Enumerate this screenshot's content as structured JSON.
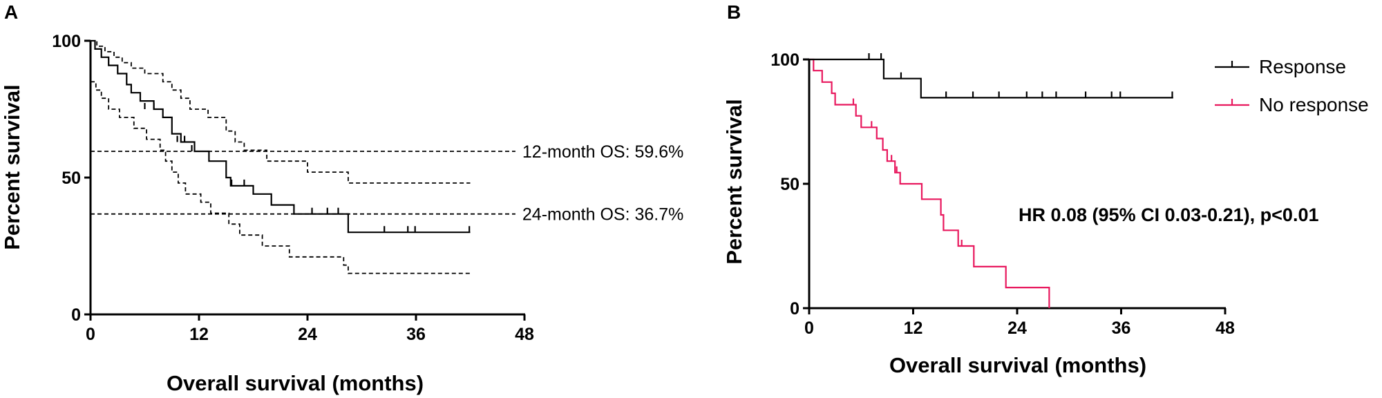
{
  "chart_data": [
    {
      "panel": "A",
      "type": "line",
      "xlabel": "Overall survival (months)",
      "ylabel": "Percent survival",
      "xlim": [
        0,
        48
      ],
      "ylim": [
        0,
        100
      ],
      "xticks": [
        "0",
        "12",
        "24",
        "36",
        "48"
      ],
      "yticks": [
        "0",
        "50",
        "100"
      ],
      "series": [
        {
          "color": "#000000",
          "style": "solid",
          "steps": [
            [
              0,
              100
            ],
            [
              0.5,
              97
            ],
            [
              1.2,
              94
            ],
            [
              2,
              91
            ],
            [
              3,
              88
            ],
            [
              4,
              84
            ],
            [
              4.5,
              81
            ],
            [
              5.5,
              78
            ],
            [
              7,
              75
            ],
            [
              8,
              72
            ],
            [
              9,
              66
            ],
            [
              10,
              63
            ],
            [
              11.5,
              59.6
            ],
            [
              13.1,
              56
            ],
            [
              15,
              50
            ],
            [
              15.5,
              47
            ],
            [
              18,
              44
            ],
            [
              20,
              40
            ],
            [
              22.5,
              36.7
            ],
            [
              28.5,
              30
            ],
            [
              42,
              30
            ]
          ],
          "censors": [
            [
              6,
              75
            ],
            [
              7,
              75
            ],
            [
              9.6,
              63
            ],
            [
              10.4,
              63
            ],
            [
              11.2,
              59.6
            ],
            [
              15.6,
              47
            ],
            [
              17,
              47
            ],
            [
              24.5,
              36.7
            ],
            [
              26.2,
              36.7
            ],
            [
              27.4,
              36.7
            ],
            [
              32.5,
              30
            ],
            [
              35.1,
              30
            ],
            [
              35.9,
              30
            ],
            [
              41.9,
              30
            ]
          ]
        },
        {
          "color": "#000000",
          "style": "dashed",
          "steps": [
            [
              0,
              100
            ],
            [
              0.7,
              98
            ],
            [
              1.6,
              96
            ],
            [
              2.6,
              94
            ],
            [
              3.5,
              92
            ],
            [
              4.5,
              90
            ],
            [
              6,
              88
            ],
            [
              8,
              85
            ],
            [
              9,
              82
            ],
            [
              10,
              79
            ],
            [
              11,
              75
            ],
            [
              13,
              72
            ],
            [
              15,
              67
            ],
            [
              16,
              63
            ],
            [
              17,
              60
            ],
            [
              19.5,
              56
            ],
            [
              24,
              52
            ],
            [
              28.5,
              48
            ],
            [
              42,
              48
            ]
          ]
        },
        {
          "color": "#000000",
          "style": "dashed",
          "steps": [
            [
              0,
              85
            ],
            [
              0.6,
              82
            ],
            [
              1.2,
              79
            ],
            [
              2,
              75
            ],
            [
              3.2,
              72
            ],
            [
              4.8,
              68
            ],
            [
              6.2,
              64
            ],
            [
              7.7,
              60
            ],
            [
              8.3,
              56
            ],
            [
              9,
              52
            ],
            [
              9.7,
              48
            ],
            [
              10.5,
              44
            ],
            [
              12.2,
              41
            ],
            [
              13.3,
              37
            ],
            [
              15.3,
              33
            ],
            [
              16.5,
              29
            ],
            [
              19,
              25
            ],
            [
              22,
              21
            ],
            [
              28,
              18
            ],
            [
              28.5,
              15
            ],
            [
              42,
              15
            ]
          ]
        }
      ],
      "reference_lines": [
        {
          "y": 59.6,
          "x_end": 47,
          "label": "12-month OS: 59.6%"
        },
        {
          "y": 36.7,
          "x_end": 47,
          "label": "24-month OS: 36.7%"
        }
      ]
    },
    {
      "panel": "B",
      "type": "line",
      "xlabel": "Overall survival (months)",
      "ylabel": "Percent survival",
      "xlim": [
        0,
        48
      ],
      "ylim": [
        0,
        100
      ],
      "xticks": [
        "0",
        "12",
        "24",
        "36",
        "48"
      ],
      "yticks": [
        "0",
        "50",
        "100"
      ],
      "legend": "top-right",
      "annotation": "HR 0.08 (95% CI 0.03-0.21), p<0.01",
      "series": [
        {
          "name": "Response",
          "color": "#000000",
          "steps": [
            [
              0,
              100
            ],
            [
              8.6,
              92.3
            ],
            [
              12.9,
              84.6
            ],
            [
              42,
              84.6
            ]
          ],
          "censors": [
            [
              6.9,
              100
            ],
            [
              8.3,
              100
            ],
            [
              10.6,
              92.3
            ],
            [
              15.8,
              84.6
            ],
            [
              18.9,
              84.6
            ],
            [
              21.9,
              84.6
            ],
            [
              25.1,
              84.6
            ],
            [
              26.9,
              84.6
            ],
            [
              28.5,
              84.6
            ],
            [
              31.9,
              84.6
            ],
            [
              34.9,
              84.6
            ],
            [
              35.9,
              84.6
            ],
            [
              41.9,
              84.6
            ]
          ]
        },
        {
          "name": "No response",
          "color": "#e8175d",
          "steps": [
            [
              0,
              100
            ],
            [
              0.5,
              95.5
            ],
            [
              1.5,
              90.9
            ],
            [
              2.6,
              86.4
            ],
            [
              3,
              81.8
            ],
            [
              5.4,
              77.3
            ],
            [
              6,
              72.7
            ],
            [
              7.8,
              68.2
            ],
            [
              8.5,
              63.6
            ],
            [
              9,
              59.1
            ],
            [
              9.9,
              54.5
            ],
            [
              10.5,
              50
            ],
            [
              13,
              43.8
            ],
            [
              15.2,
              37.5
            ],
            [
              15.5,
              31.3
            ],
            [
              17.2,
              25
            ],
            [
              19,
              16.7
            ],
            [
              22.7,
              8.3
            ],
            [
              27.7,
              0
            ]
          ],
          "censors": [
            [
              5.1,
              81.8
            ],
            [
              7.2,
              72.7
            ],
            [
              9.5,
              59.1
            ],
            [
              10.1,
              54.5
            ],
            [
              17.6,
              25
            ]
          ]
        }
      ]
    }
  ],
  "panels": {
    "a": {
      "letter": "A"
    },
    "b": {
      "letter": "B"
    }
  }
}
